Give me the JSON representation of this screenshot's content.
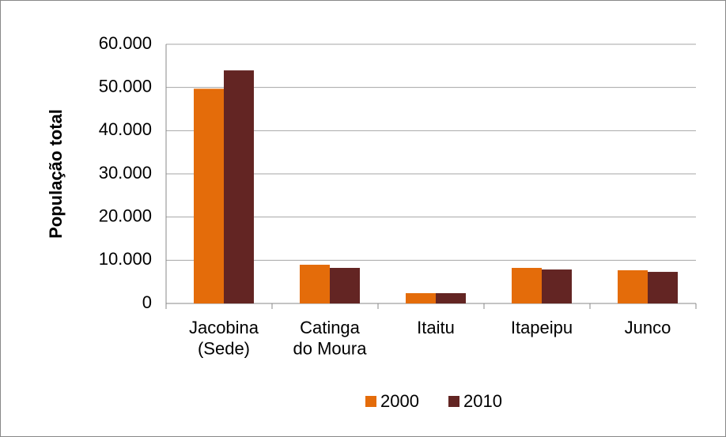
{
  "chart_data": {
    "type": "bar",
    "y_label": "População total",
    "categories": [
      "Jacobina\n(Sede)",
      "Catinga\ndo Moura",
      "Itaitu",
      "Itapeipu",
      "Junco"
    ],
    "series": [
      {
        "name": "2000",
        "color": "#e46c0a",
        "values": [
          49700,
          8960,
          2380,
          8230,
          7680
        ]
      },
      {
        "name": "2010",
        "color": "#632523",
        "values": [
          53950,
          8230,
          2380,
          7860,
          7310
        ]
      }
    ],
    "ylim": [
      0,
      60000
    ],
    "yticks": [
      0,
      {
        "value": 10000,
        "label": "10.000"
      },
      {
        "value": 20000,
        "label": "20.000"
      },
      {
        "value": 30000,
        "label": "30.000"
      },
      {
        "value": 40000,
        "label": "40.000"
      },
      {
        "value": 50000,
        "label": "50.000"
      },
      {
        "value": 60000,
        "label": "60.000"
      }
    ],
    "grid": true,
    "legend": "bottom"
  }
}
